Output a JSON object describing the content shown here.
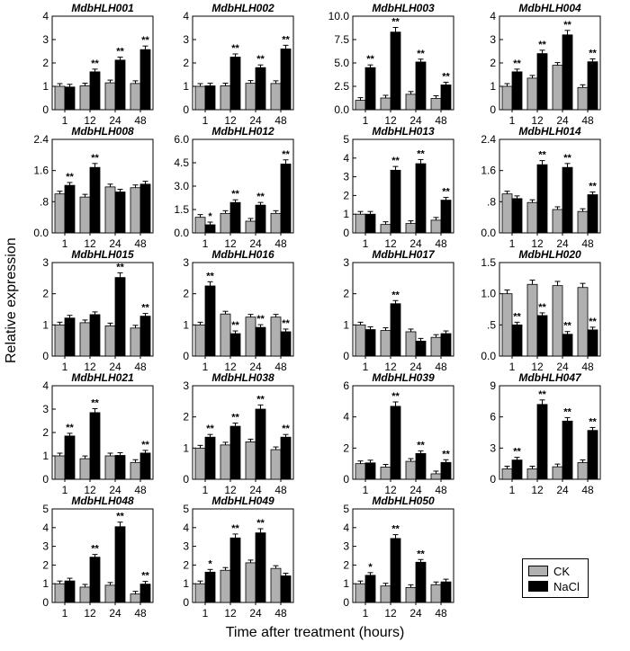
{
  "x_axis_title": "Time after treatment (hours)",
  "y_axis_title": "Relative expression",
  "legend": [
    {
      "label": "CK",
      "color": "#b0b0b0"
    },
    {
      "label": "NaCl",
      "color": "#000000"
    }
  ],
  "chart_data": [
    {
      "type": "bar",
      "title": "MdbHLH001",
      "categories": [
        "1",
        "12",
        "24",
        "48"
      ],
      "yticks": [
        "0",
        "1",
        "2",
        "3",
        "4"
      ],
      "ylim": [
        0,
        4
      ],
      "series": [
        {
          "name": "CK",
          "values": [
            1.0,
            1.02,
            1.15,
            1.12
          ]
        },
        {
          "name": "NaCl",
          "values": [
            0.97,
            1.62,
            2.12,
            2.57
          ]
        }
      ],
      "significance": [
        {
          "category": "12",
          "label": "**"
        },
        {
          "category": "24",
          "label": "**"
        },
        {
          "category": "48",
          "label": "**"
        }
      ]
    },
    {
      "type": "bar",
      "title": "MdbHLH002",
      "categories": [
        "1",
        "12",
        "24",
        "48"
      ],
      "yticks": [
        "0",
        "1",
        "2",
        "3",
        "4"
      ],
      "ylim": [
        0,
        4
      ],
      "series": [
        {
          "name": "CK",
          "values": [
            1.0,
            1.02,
            1.13,
            1.12
          ]
        },
        {
          "name": "NaCl",
          "values": [
            1.02,
            2.25,
            1.8,
            2.6
          ]
        }
      ],
      "significance": [
        {
          "category": "12",
          "label": "**"
        },
        {
          "category": "24",
          "label": "**"
        },
        {
          "category": "48",
          "label": "**"
        }
      ]
    },
    {
      "type": "bar",
      "title": "MdbHLH003",
      "categories": [
        "1",
        "12",
        "24",
        "48"
      ],
      "yticks": [
        "0.0",
        "2.5",
        "5.0",
        "7.5",
        "10.0"
      ],
      "ylim": [
        0,
        10
      ],
      "series": [
        {
          "name": "CK",
          "values": [
            1.0,
            1.25,
            1.65,
            1.2
          ]
        },
        {
          "name": "NaCl",
          "values": [
            4.5,
            8.3,
            5.1,
            2.65
          ]
        }
      ],
      "significance": [
        {
          "category": "1",
          "label": "**"
        },
        {
          "category": "12",
          "label": "**"
        },
        {
          "category": "24",
          "label": "**"
        },
        {
          "category": "48",
          "label": "**"
        }
      ]
    },
    {
      "type": "bar",
      "title": "MdbHLH004",
      "categories": [
        "1",
        "12",
        "24",
        "48"
      ],
      "yticks": [
        "0",
        "1",
        "2",
        "3",
        "4"
      ],
      "ylim": [
        0,
        4
      ],
      "series": [
        {
          "name": "CK",
          "values": [
            1.0,
            1.35,
            1.9,
            0.95
          ]
        },
        {
          "name": "NaCl",
          "values": [
            1.62,
            2.4,
            3.2,
            2.05
          ]
        }
      ],
      "significance": [
        {
          "category": "1",
          "label": "**"
        },
        {
          "category": "12",
          "label": "**"
        },
        {
          "category": "24",
          "label": "**"
        },
        {
          "category": "48",
          "label": "**"
        }
      ]
    },
    {
      "type": "bar",
      "title": "MdbHLH008",
      "categories": [
        "1",
        "12",
        "24",
        "48"
      ],
      "yticks": [
        "0.0",
        ".8",
        "1.6",
        "2.4"
      ],
      "ylim": [
        0,
        2.4
      ],
      "series": [
        {
          "name": "CK",
          "values": [
            1.0,
            0.92,
            1.18,
            1.16
          ]
        },
        {
          "name": "NaCl",
          "values": [
            1.22,
            1.68,
            1.05,
            1.25
          ]
        }
      ],
      "significance": [
        {
          "category": "1",
          "label": "**"
        },
        {
          "category": "12",
          "label": "**"
        }
      ]
    },
    {
      "type": "bar",
      "title": "MdbHLH012",
      "categories": [
        "1",
        "12",
        "24",
        "48"
      ],
      "yticks": [
        "0.0",
        "1.5",
        "3.0",
        "4.5",
        "6.0"
      ],
      "ylim": [
        0,
        6
      ],
      "series": [
        {
          "name": "CK",
          "values": [
            1.0,
            1.25,
            0.75,
            1.25
          ]
        },
        {
          "name": "NaCl",
          "values": [
            0.52,
            1.95,
            1.78,
            4.42
          ]
        }
      ],
      "significance": [
        {
          "category": "1",
          "label": "*"
        },
        {
          "category": "12",
          "label": "**"
        },
        {
          "category": "24",
          "label": "**"
        },
        {
          "category": "48",
          "label": "**"
        }
      ]
    },
    {
      "type": "bar",
      "title": "MdbHLH013",
      "categories": [
        "1",
        "12",
        "24",
        "48"
      ],
      "yticks": [
        "0",
        "1",
        "2",
        "3",
        "4",
        "5"
      ],
      "ylim": [
        0,
        5
      ],
      "series": [
        {
          "name": "CK",
          "values": [
            1.0,
            0.45,
            0.5,
            0.68
          ]
        },
        {
          "name": "NaCl",
          "values": [
            1.0,
            3.35,
            3.7,
            1.75
          ]
        }
      ],
      "significance": [
        {
          "category": "12",
          "label": "**"
        },
        {
          "category": "24",
          "label": "**"
        },
        {
          "category": "48",
          "label": "**"
        }
      ]
    },
    {
      "type": "bar",
      "title": "MdbHLH014",
      "categories": [
        "1",
        "12",
        "24",
        "48"
      ],
      "yticks": [
        "0.0",
        ".8",
        "1.6",
        "2.4"
      ],
      "ylim": [
        0,
        2.4
      ],
      "series": [
        {
          "name": "CK",
          "values": [
            1.0,
            0.78,
            0.6,
            0.55
          ]
        },
        {
          "name": "NaCl",
          "values": [
            0.88,
            1.75,
            1.68,
            0.98
          ]
        }
      ],
      "significance": [
        {
          "category": "12",
          "label": "**"
        },
        {
          "category": "24",
          "label": "**"
        },
        {
          "category": "48",
          "label": "**"
        }
      ]
    },
    {
      "type": "bar",
      "title": "MdbHLH015",
      "categories": [
        "1",
        "12",
        "24",
        "48"
      ],
      "yticks": [
        "0",
        "1",
        "2",
        "3"
      ],
      "ylim": [
        0,
        3
      ],
      "series": [
        {
          "name": "CK",
          "values": [
            1.0,
            1.07,
            0.97,
            0.9
          ]
        },
        {
          "name": "NaCl",
          "values": [
            1.22,
            1.33,
            2.52,
            1.28
          ]
        }
      ],
      "significance": [
        {
          "category": "24",
          "label": "**"
        },
        {
          "category": "48",
          "label": "**"
        }
      ]
    },
    {
      "type": "bar",
      "title": "MdbHLH016",
      "categories": [
        "1",
        "12",
        "24",
        "48"
      ],
      "yticks": [
        "0",
        "1",
        "2",
        "3"
      ],
      "ylim": [
        0,
        3
      ],
      "series": [
        {
          "name": "CK",
          "values": [
            1.0,
            1.35,
            1.25,
            1.25
          ]
        },
        {
          "name": "NaCl",
          "values": [
            2.25,
            0.72,
            0.92,
            0.78
          ]
        }
      ],
      "significance": [
        {
          "category": "1",
          "label": "**"
        },
        {
          "category": "12",
          "label": "**"
        },
        {
          "category": "24",
          "label": "**"
        },
        {
          "category": "48",
          "label": "**"
        }
      ]
    },
    {
      "type": "bar",
      "title": "MdbHLH017",
      "categories": [
        "1",
        "12",
        "24",
        "48"
      ],
      "yticks": [
        "0",
        "1",
        "2",
        "3"
      ],
      "ylim": [
        0,
        3
      ],
      "series": [
        {
          "name": "CK",
          "values": [
            1.0,
            0.82,
            0.78,
            0.6
          ]
        },
        {
          "name": "NaCl",
          "values": [
            0.85,
            1.68,
            0.48,
            0.72
          ]
        }
      ],
      "significance": [
        {
          "category": "12",
          "label": "**"
        }
      ]
    },
    {
      "type": "bar",
      "title": "MdbHLH020",
      "categories": [
        "1",
        "12",
        "24",
        "48"
      ],
      "yticks": [
        "0.0",
        ".5",
        "1.0",
        "1.5"
      ],
      "ylim": [
        0,
        1.5
      ],
      "series": [
        {
          "name": "CK",
          "values": [
            1.0,
            1.15,
            1.13,
            1.1
          ]
        },
        {
          "name": "NaCl",
          "values": [
            0.5,
            0.65,
            0.35,
            0.42
          ]
        }
      ],
      "significance": [
        {
          "category": "1",
          "label": "**"
        },
        {
          "category": "12",
          "label": "**"
        },
        {
          "category": "24",
          "label": "**"
        },
        {
          "category": "48",
          "label": "**"
        }
      ]
    },
    {
      "type": "bar",
      "title": "MdbHLH021",
      "categories": [
        "1",
        "12",
        "24",
        "48"
      ],
      "yticks": [
        "0",
        "1",
        "2",
        "3",
        "4"
      ],
      "ylim": [
        0,
        4
      ],
      "series": [
        {
          "name": "CK",
          "values": [
            1.0,
            0.88,
            1.0,
            0.72
          ]
        },
        {
          "name": "NaCl",
          "values": [
            1.85,
            2.85,
            1.02,
            1.12
          ]
        }
      ],
      "significance": [
        {
          "category": "1",
          "label": "**"
        },
        {
          "category": "12",
          "label": "**"
        },
        {
          "category": "48",
          "label": "**"
        }
      ]
    },
    {
      "type": "bar",
      "title": "MdbHLH038",
      "categories": [
        "1",
        "12",
        "24",
        "48"
      ],
      "yticks": [
        "0",
        "1",
        "2",
        "3"
      ],
      "ylim": [
        0,
        3
      ],
      "series": [
        {
          "name": "CK",
          "values": [
            1.0,
            1.1,
            1.2,
            0.95
          ]
        },
        {
          "name": "NaCl",
          "values": [
            1.35,
            1.7,
            2.25,
            1.35
          ]
        }
      ],
      "significance": [
        {
          "category": "1",
          "label": "**"
        },
        {
          "category": "12",
          "label": "**"
        },
        {
          "category": "24",
          "label": "**"
        },
        {
          "category": "48",
          "label": "**"
        }
      ]
    },
    {
      "type": "bar",
      "title": "MdbHLH039",
      "categories": [
        "1",
        "12",
        "24",
        "48"
      ],
      "yticks": [
        "0",
        "2",
        "4",
        "6"
      ],
      "ylim": [
        0,
        6
      ],
      "series": [
        {
          "name": "CK",
          "values": [
            1.0,
            0.78,
            1.15,
            0.35
          ]
        },
        {
          "name": "NaCl",
          "values": [
            1.05,
            4.68,
            1.65,
            1.08
          ]
        }
      ],
      "significance": [
        {
          "category": "12",
          "label": "**"
        },
        {
          "category": "24",
          "label": "**"
        },
        {
          "category": "48",
          "label": "**"
        }
      ]
    },
    {
      "type": "bar",
      "title": "MdbHLH047",
      "categories": [
        "1",
        "12",
        "24",
        "48"
      ],
      "yticks": [
        "0",
        "3",
        "6",
        "9"
      ],
      "ylim": [
        0,
        9
      ],
      "series": [
        {
          "name": "CK",
          "values": [
            1.0,
            1.0,
            1.2,
            1.6
          ]
        },
        {
          "name": "NaCl",
          "values": [
            1.85,
            7.2,
            5.6,
            4.7
          ]
        }
      ],
      "significance": [
        {
          "category": "1",
          "label": "**"
        },
        {
          "category": "12",
          "label": "**"
        },
        {
          "category": "24",
          "label": "**"
        },
        {
          "category": "48",
          "label": "**"
        }
      ]
    },
    {
      "type": "bar",
      "title": "MdbHLH048",
      "categories": [
        "1",
        "12",
        "24",
        "48"
      ],
      "yticks": [
        "0",
        "1",
        "2",
        "3",
        "4",
        "5"
      ],
      "ylim": [
        0,
        5
      ],
      "series": [
        {
          "name": "CK",
          "values": [
            1.0,
            0.82,
            0.92,
            0.45
          ]
        },
        {
          "name": "NaCl",
          "values": [
            1.15,
            2.42,
            4.05,
            0.98
          ]
        }
      ],
      "significance": [
        {
          "category": "12",
          "label": "**"
        },
        {
          "category": "24",
          "label": "**"
        },
        {
          "category": "48",
          "label": "**"
        }
      ]
    },
    {
      "type": "bar",
      "title": "MdbHLH049",
      "categories": [
        "1",
        "12",
        "24",
        "48"
      ],
      "yticks": [
        "0",
        "1",
        "2",
        "3",
        "4",
        "5"
      ],
      "ylim": [
        0,
        5
      ],
      "series": [
        {
          "name": "CK",
          "values": [
            1.0,
            1.72,
            2.12,
            1.82
          ]
        },
        {
          "name": "NaCl",
          "values": [
            1.62,
            3.45,
            3.72,
            1.42
          ]
        }
      ],
      "significance": [
        {
          "category": "1",
          "label": "*"
        },
        {
          "category": "12",
          "label": "**"
        },
        {
          "category": "24",
          "label": "**"
        }
      ]
    },
    {
      "type": "bar",
      "title": "MdbHLH050",
      "categories": [
        "1",
        "12",
        "24",
        "48"
      ],
      "yticks": [
        "0",
        "1",
        "2",
        "3",
        "4",
        "5"
      ],
      "ylim": [
        0,
        5
      ],
      "series": [
        {
          "name": "CK",
          "values": [
            1.0,
            0.88,
            0.8,
            0.95
          ]
        },
        {
          "name": "NaCl",
          "values": [
            1.45,
            3.42,
            2.15,
            1.1
          ]
        }
      ],
      "significance": [
        {
          "category": "1",
          "label": "*"
        },
        {
          "category": "12",
          "label": "**"
        },
        {
          "category": "24",
          "label": "**"
        }
      ]
    }
  ]
}
